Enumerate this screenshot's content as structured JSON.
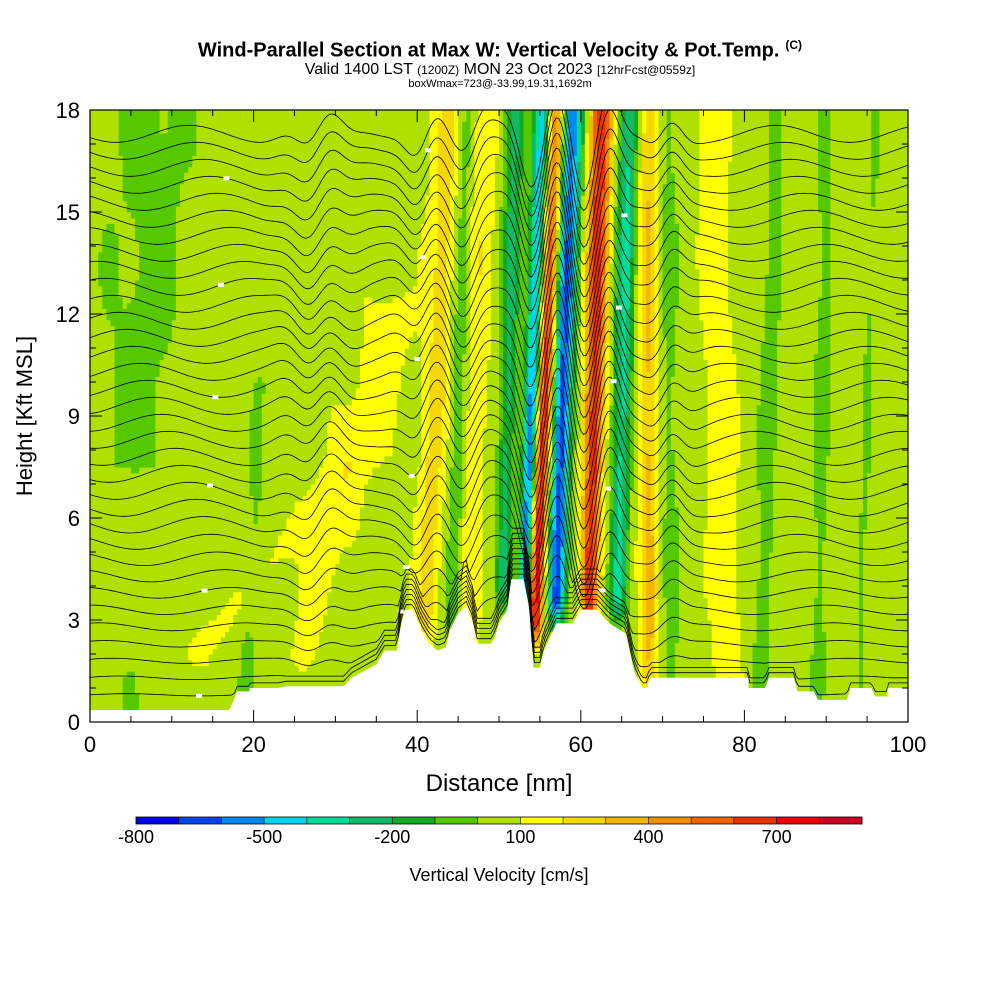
{
  "chart_data": {
    "type": "heatmap",
    "title": "Wind-Parallel Section at Max W: Vertical Velocity & Pot.Temp.",
    "title_mark": "(C)",
    "subtitle": {
      "valid_prefix": "Valid 1400 LST",
      "utc": "(1200Z)",
      "date": "MON 23 Oct 2023",
      "forecast": "[12hrFcst@0559z]"
    },
    "info_line": "boxWmax=723@-33.99,19.31,1692m",
    "xlabel": "Distance [nm]",
    "ylabel": "Height [Kft MSL]",
    "xlim": [
      0,
      100
    ],
    "ylim": [
      0,
      18
    ],
    "xticks": [
      0,
      20,
      40,
      60,
      80,
      100
    ],
    "yticks": [
      0,
      3,
      6,
      9,
      12,
      15,
      18
    ],
    "colorbar": {
      "label": "Vertical Velocity [cm/s]",
      "tick_labels": [
        "-800",
        "-500",
        "-200",
        "100",
        "400",
        "700"
      ],
      "tick_values": [
        -800,
        -500,
        -200,
        100,
        400,
        700
      ],
      "range": [
        -800,
        900
      ],
      "colors": [
        "#0000ee",
        "#0044ee",
        "#0088ee",
        "#00d4ee",
        "#00dd99",
        "#11bb66",
        "#11aa22",
        "#55c800",
        "#aee000",
        "#ffff00",
        "#f5d800",
        "#f5b400",
        "#f09000",
        "#ee6400",
        "#ee3000",
        "#ee0000",
        "#cc0020"
      ]
    },
    "terrain_kft": [
      [
        0,
        0.35
      ],
      [
        17,
        0.35
      ],
      [
        17.5,
        0.6
      ],
      [
        18,
        0.9
      ],
      [
        19.5,
        0.9
      ],
      [
        19.5,
        1.0
      ],
      [
        23,
        1.0
      ],
      [
        24,
        1.05
      ],
      [
        31,
        1.05
      ],
      [
        32,
        1.3
      ],
      [
        33.5,
        1.5
      ],
      [
        35,
        1.7
      ],
      [
        36,
        2.1
      ],
      [
        37.5,
        2.1
      ],
      [
        38,
        2.8
      ],
      [
        38.5,
        3.3
      ],
      [
        39.5,
        3.3
      ],
      [
        40.5,
        2.7
      ],
      [
        41.5,
        2.3
      ],
      [
        42.5,
        2.1
      ],
      [
        43.5,
        2.2
      ],
      [
        44,
        2.7
      ],
      [
        45,
        3.2
      ],
      [
        46,
        3.4
      ],
      [
        46.7,
        3.0
      ],
      [
        47.3,
        2.3
      ],
      [
        49,
        2.3
      ],
      [
        49.5,
        2.5
      ],
      [
        50,
        2.9
      ],
      [
        51,
        3.3
      ],
      [
        51.5,
        4.2
      ],
      [
        53,
        4.2
      ],
      [
        53.7,
        3.3
      ],
      [
        54.2,
        1.6
      ],
      [
        55,
        1.6
      ],
      [
        55.5,
        2.1
      ],
      [
        57,
        2.9
      ],
      [
        59,
        2.9
      ],
      [
        60,
        3.3
      ],
      [
        62,
        3.3
      ],
      [
        63.5,
        2.9
      ],
      [
        65.5,
        2.6
      ],
      [
        66.5,
        1.5
      ],
      [
        67.5,
        1.0
      ],
      [
        68,
        1.0
      ],
      [
        68.5,
        1.3
      ],
      [
        75,
        1.3
      ],
      [
        80.5,
        1.3
      ],
      [
        80.5,
        1.0
      ],
      [
        82.5,
        1.0
      ],
      [
        83,
        1.3
      ],
      [
        86,
        1.3
      ],
      [
        86.5,
        0.9
      ],
      [
        88.5,
        0.9
      ],
      [
        89,
        0.65
      ],
      [
        92.5,
        0.65
      ],
      [
        93,
        1.0
      ],
      [
        95.5,
        1.0
      ],
      [
        96,
        0.75
      ],
      [
        97.5,
        0.75
      ],
      [
        97.5,
        1.0
      ],
      [
        100,
        1.0
      ]
    ],
    "updraft_bands": [
      {
        "x_bottom": 13,
        "x_top": 33,
        "w_bottom": 4,
        "w_top": 6,
        "value": 60,
        "y_bottom": 2,
        "y_top": 8
      },
      {
        "x_bottom": 26,
        "x_top": 37,
        "w_bottom": 3,
        "w_top": 6,
        "value": 80,
        "y_bottom": 2,
        "y_top": 12
      },
      {
        "x_bottom": 41,
        "x_top": 44,
        "w_bottom": 2.5,
        "w_top": 3.5,
        "value": 180,
        "y_bottom": 3,
        "y_top": 18
      },
      {
        "x_bottom": 46,
        "x_top": 48,
        "w_bottom": 2.5,
        "w_top": 3.5,
        "value": 120,
        "y_bottom": 2.5,
        "y_top": 18
      },
      {
        "x_bottom": 54.5,
        "x_top": 57,
        "w_bottom": 1.6,
        "w_top": 2.8,
        "value": 650,
        "y_bottom": 3,
        "y_top": 18
      },
      {
        "x_bottom": 61,
        "x_top": 62.5,
        "w_bottom": 2.0,
        "w_top": 3.0,
        "value": 600,
        "y_bottom": 3.5,
        "y_top": 18
      },
      {
        "x_bottom": 68.5,
        "x_top": 68,
        "w_bottom": 2.0,
        "w_top": 3.0,
        "value": 250,
        "y_bottom": 1,
        "y_top": 18
      },
      {
        "x_bottom": 78,
        "x_top": 76,
        "w_bottom": 3.0,
        "w_top": 3.0,
        "value": 120,
        "y_bottom": 1,
        "y_top": 18
      }
    ],
    "downdraft_bands": [
      {
        "x_bottom": 53,
        "x_top": 55.5,
        "w_bottom": 1.4,
        "w_top": 2.4,
        "value": -650,
        "y_bottom": 3.5,
        "y_top": 18
      },
      {
        "x_bottom": 57,
        "x_top": 58.8,
        "w_bottom": 2.0,
        "w_top": 3.0,
        "value": -720,
        "y_bottom": 3.5,
        "y_top": 18
      },
      {
        "x_bottom": 64.5,
        "x_top": 66,
        "w_bottom": 2.0,
        "w_top": 3.0,
        "value": -400,
        "y_bottom": 3.5,
        "y_top": 18
      },
      {
        "x_bottom": 50.5,
        "x_top": 52,
        "w_bottom": 2.0,
        "w_top": 2.5,
        "value": -300,
        "y_bottom": 4,
        "y_top": 18
      },
      {
        "x_bottom": 44.5,
        "x_top": 46,
        "w_bottom": 2.0,
        "w_top": 2.5,
        "value": -150,
        "y_bottom": 3,
        "y_top": 18
      },
      {
        "x_bottom": 71,
        "x_top": 70.5,
        "w_bottom": 2.5,
        "w_top": 3.0,
        "value": -100,
        "y_bottom": 1,
        "y_top": 18
      },
      {
        "x_bottom": 82,
        "x_top": 84,
        "w_bottom": 2.5,
        "w_top": 2.5,
        "value": -120,
        "y_bottom": 1,
        "y_top": 18
      },
      {
        "x_bottom": 89,
        "x_top": 90,
        "w_bottom": 2.5,
        "w_top": 2.5,
        "value": -100,
        "y_bottom": 1,
        "y_top": 18
      },
      {
        "x_bottom": 94,
        "x_top": 96,
        "w_bottom": 2.0,
        "w_top": 2.0,
        "value": -80,
        "y_bottom": 1,
        "y_top": 18
      },
      {
        "x_bottom": 4,
        "x_top": 8,
        "w_bottom": 8,
        "w_top": 10,
        "value": -60,
        "y_bottom": 0,
        "y_top": 18
      },
      {
        "x_bottom": 19,
        "x_top": 21,
        "w_bottom": 3,
        "w_top": 3,
        "value": -80,
        "y_bottom": 1,
        "y_top": 10
      }
    ],
    "isentropes": {
      "count": 34,
      "y_start_kft": 0.8,
      "spacing_kft": 0.5,
      "labels_visible": true
    }
  }
}
